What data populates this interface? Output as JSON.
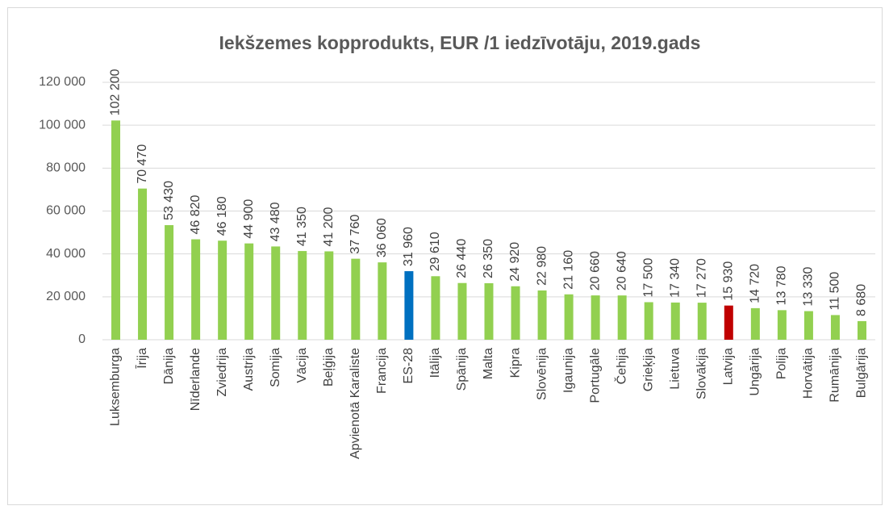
{
  "chart_data": {
    "type": "bar",
    "title": "Iekšzemes kopprodukts, EUR /1 iedzīvotāju, 2019.gads",
    "categories": [
      "Luksemburga",
      "Īrija",
      "Dānija",
      "Nīderlande",
      "Zviedrija",
      "Austrija",
      "Somija",
      "Vācija",
      "Beļģija",
      "Apvienotā Karaliste",
      "Francija",
      "ES-28",
      "Itālija",
      "Spānija",
      "Malta",
      "Kipra",
      "Slovēnija",
      "Igaunija",
      "Portugāle",
      "Čehija",
      "Grieķija",
      "Lietuva",
      "Slovākija",
      "Latvija",
      "Ungārija",
      "Polija",
      "Horvātija",
      "Rumānija",
      "Bulgārija"
    ],
    "values": [
      102200,
      70470,
      53430,
      46820,
      46180,
      44900,
      43480,
      41350,
      41200,
      37760,
      36060,
      31960,
      29610,
      26440,
      26350,
      24920,
      22980,
      21160,
      20660,
      20640,
      17500,
      17340,
      17270,
      15930,
      14720,
      13780,
      13330,
      11500,
      8680
    ],
    "value_labels": [
      "102 200",
      "70 470",
      "53 430",
      "46 820",
      "46 180",
      "44 900",
      "43 480",
      "41 350",
      "41 200",
      "37 760",
      "36 060",
      "31 960",
      "29 610",
      "26 440",
      "26 350",
      "24 920",
      "22 980",
      "21 160",
      "20 660",
      "20 640",
      "17 500",
      "17 340",
      "17 270",
      "15 930",
      "14 720",
      "13 780",
      "13 330",
      "11 500",
      "8 680"
    ],
    "colors": [
      "#92d050",
      "#92d050",
      "#92d050",
      "#92d050",
      "#92d050",
      "#92d050",
      "#92d050",
      "#92d050",
      "#92d050",
      "#92d050",
      "#92d050",
      "#0070c0",
      "#92d050",
      "#92d050",
      "#92d050",
      "#92d050",
      "#92d050",
      "#92d050",
      "#92d050",
      "#92d050",
      "#92d050",
      "#92d050",
      "#92d050",
      "#c00000",
      "#92d050",
      "#92d050",
      "#92d050",
      "#92d050",
      "#92d050"
    ],
    "ylim": [
      0,
      120000
    ],
    "yticks": [
      0,
      {
        "value": 20000,
        "label": "20 000"
      },
      {
        "value": 40000,
        "label": "40 000"
      },
      {
        "value": 60000,
        "label": "60 000"
      },
      {
        "value": 80000,
        "label": "80 000"
      },
      {
        "value": 100000,
        "label": "100 000"
      },
      {
        "value": 120000,
        "label": "120 000"
      }
    ],
    "grid": true
  }
}
